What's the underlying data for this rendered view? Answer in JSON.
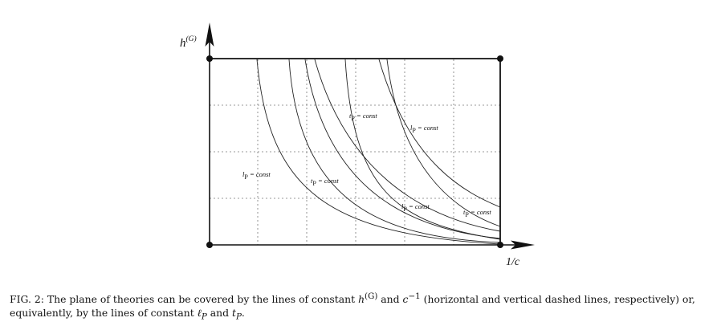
{
  "figure": {
    "y_axis_label_main": "h",
    "y_axis_label_sup": "(G)",
    "x_axis_label": "1/c",
    "curve_labels": [
      {
        "prefix": "l",
        "sub": "P",
        "rest": " = const"
      },
      {
        "prefix": "t",
        "sub": "P",
        "rest": " = const"
      },
      {
        "prefix": "t",
        "sub": "P",
        "rest": " = const"
      },
      {
        "prefix": "l",
        "sub": "P",
        "rest": " = const"
      },
      {
        "prefix": "l",
        "sub": "P",
        "rest": " = const"
      },
      {
        "prefix": "t",
        "sub": "P",
        "rest": " = const"
      }
    ]
  },
  "caption": {
    "lead": "FIG. 2: The plane of theories can be covered by the lines of constant ",
    "h_sym": "h",
    "h_sup": "(G)",
    "mid": " and ",
    "c_sym": "c",
    "c_sup": "−1",
    "tail1": " (horizontal and vertical dashed lines, respectively) or, equivalently, by the lines of constant ",
    "lp_sym": "ℓ",
    "lp_sub": "P",
    "and2": " and ",
    "tp_sym": "t",
    "tp_sub": "P",
    "end": "."
  }
}
